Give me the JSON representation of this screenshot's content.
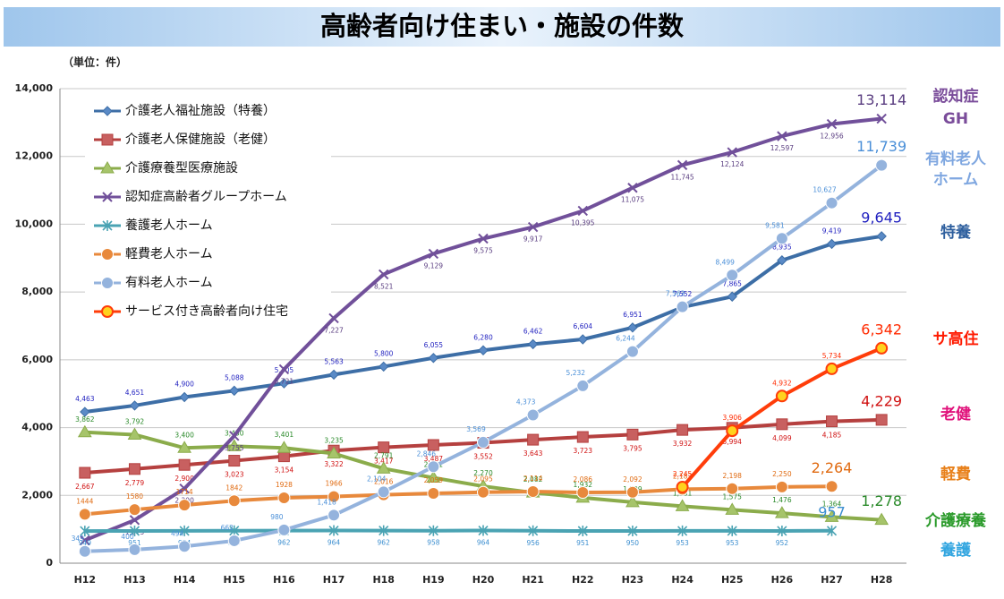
{
  "chart_data": {
    "type": "line",
    "title": "高齢者向け住まい・施設の件数",
    "unit_label": "（単位：件）",
    "categories": [
      "H12",
      "H13",
      "H14",
      "H15",
      "H16",
      "H17",
      "H18",
      "H19",
      "H20",
      "H21",
      "H22",
      "H23",
      "H24",
      "H25",
      "H26",
      "H27",
      "H28"
    ],
    "ylim": [
      0,
      14000
    ],
    "yticks": [
      0,
      {
        "value": 2000,
        "label": "2,000"
      },
      {
        "value": 4000,
        "label": "4,000"
      },
      {
        "value": 6000,
        "label": "6,000"
      },
      {
        "value": 8000,
        "label": "8,000"
      },
      {
        "value": 10000,
        "label": "10,000"
      },
      {
        "value": 12000,
        "label": "12,000"
      },
      {
        "value": 14000,
        "label": "14,000"
      }
    ],
    "grid": true,
    "legend": "upper left",
    "series": [
      {
        "name": "介護老人福祉施設（特養）",
        "color": "#3d6ea6",
        "label_color": "#1f1fbf",
        "marker": "diamond",
        "values": [
          4463,
          4651,
          4900,
          5088,
          5305,
          5563,
          5800,
          6055,
          6280,
          6462,
          6604,
          6951,
          7552,
          7865,
          8935,
          9419,
          9645
        ],
        "value_labels": [
          "4,463",
          "4,651",
          "4,900",
          "5,088",
          "5,305",
          "5,563",
          "5,800",
          "6,055",
          "6,280",
          "6,462",
          "6,604",
          "6,951",
          "7,552",
          "7,865",
          "8,935",
          "9,419",
          "9,645"
        ]
      },
      {
        "name": "介護老人保健施設（老健）",
        "color": "#b5403f",
        "label_color": "#d01010",
        "marker": "square",
        "values": [
          2667,
          2779,
          2900,
          3023,
          3154,
          3322,
          3417,
          3487,
          3552,
          3643,
          3723,
          3795,
          3932,
          3994,
          4099,
          4185,
          4229
        ],
        "value_labels": [
          "2,667",
          "2,779",
          "2,900",
          "3,023",
          "3,154",
          "3,322",
          "3,417",
          "3,487",
          "3,552",
          "3,643",
          "3,723",
          "3,795",
          "3,932",
          "3,994",
          "4,099",
          "4,185",
          "4,229"
        ]
      },
      {
        "name": "介護療養型医療施設",
        "color": "#8bac4b",
        "label_color": "#2a8a2a",
        "marker": "triangle",
        "values": [
          3862,
          3792,
          3400,
          3450,
          3401,
          3235,
          2791,
          2521,
          2270,
          2082,
          1932,
          1799,
          1681,
          1575,
          1476,
          1364,
          1278
        ],
        "value_labels": [
          "3,862",
          "3,792",
          "3,400",
          "3,450",
          "3,401",
          "3,235",
          "2,791",
          "2,521",
          "2,270",
          "2,082",
          "1,932",
          "1,799",
          "1,681",
          "1,575",
          "1,476",
          "1,364",
          "1,278"
        ]
      },
      {
        "name": "認知症高齢者グループホーム",
        "color": "#71509a",
        "label_color": "#5a3d80",
        "marker": "x",
        "values": [
          675,
          1273,
          2200,
          3755,
          5721,
          7227,
          8521,
          9129,
          9575,
          9917,
          10395,
          11075,
          11745,
          12124,
          12597,
          12956,
          13114
        ],
        "value_labels": [
          "675",
          "1,273",
          "2,200",
          "3,755",
          "5,721",
          "7,227",
          "8,521",
          "9,129",
          "9,575",
          "9,917",
          "10,395",
          "11,075",
          "11,745",
          "12,124",
          "12,597",
          "12,956",
          "13,114"
        ]
      },
      {
        "name": "養護老人ホーム",
        "color": "#4aa3b3",
        "label_color": "#3d8fd0",
        "marker": "star",
        "values": [
          949,
          951,
          954,
          959,
          962,
          964,
          962,
          958,
          964,
          956,
          951,
          950,
          953,
          953,
          952,
          957,
          null
        ],
        "value_labels": [
          "949",
          "951",
          "954",
          "959",
          "962",
          "964",
          "962",
          "958",
          "964",
          "956",
          "951",
          "950",
          "953",
          "953",
          "952",
          "957",
          null
        ]
      },
      {
        "name": "軽費老人ホーム",
        "color": "#e8893c",
        "label_color": "#e06a10",
        "marker": "circle",
        "values": [
          1444,
          1580,
          1714,
          1842,
          1928,
          1966,
          2016,
          2059,
          2095,
          2114,
          2086,
          2092,
          2182,
          2198,
          2250,
          2264,
          null
        ],
        "value_labels": [
          "1444",
          "1580",
          "1714",
          "1842",
          "1928",
          "1966",
          "2,016",
          "2,059",
          "2,095",
          "2,114",
          "2,086",
          "2,092",
          "2,182",
          "2,198",
          "2,250",
          "2,264",
          null
        ]
      },
      {
        "name": "有料老人ホーム",
        "color": "#94b3dd",
        "label_color": "#4a8fd8",
        "marker": "circle",
        "values": [
          349,
          400,
          494,
          662,
          980,
          1418,
          2104,
          2846,
          3569,
          4373,
          5232,
          6244,
          7563,
          8499,
          9581,
          10627,
          11739
        ],
        "value_labels": [
          "349",
          "400",
          "494",
          "662",
          "980",
          "1,418",
          "2,104",
          "2,846",
          "3,569",
          "4,373",
          "5,232",
          "6,244",
          "7,563",
          "8,499",
          "9,581",
          "10,627",
          "11,739"
        ]
      },
      {
        "name": "サービス付き高齢者向け住宅",
        "color": "#ff3d0a",
        "label_color": "#ff2a00",
        "marker": "circle-yellow",
        "values": [
          null,
          null,
          null,
          null,
          null,
          null,
          null,
          null,
          null,
          null,
          null,
          null,
          2245,
          3906,
          4932,
          5734,
          6342
        ],
        "value_labels": [
          null,
          null,
          null,
          null,
          null,
          null,
          null,
          null,
          null,
          null,
          null,
          null,
          "2,245",
          "3,906",
          "4,932",
          "5,734",
          "6,342"
        ]
      }
    ],
    "annotations": [
      {
        "lines": [
          "認知症",
          "GH"
        ],
        "color": "#7a4c9a"
      },
      {
        "lines": [
          "有料老人",
          "ホーム"
        ],
        "color": "#7fa7e0"
      },
      {
        "lines": [
          "特養"
        ],
        "color": "#2e5f9e"
      },
      {
        "lines": [
          "サ高住"
        ],
        "color": "#ff1a00"
      },
      {
        "lines": [
          "老健"
        ],
        "color": "#e0107a"
      },
      {
        "lines": [
          "軽費"
        ],
        "color": "#e8801a"
      },
      {
        "lines": [
          "介護療養"
        ],
        "color": "#2a9a2a"
      },
      {
        "lines": [
          "養護"
        ],
        "color": "#33a6e0"
      }
    ]
  }
}
